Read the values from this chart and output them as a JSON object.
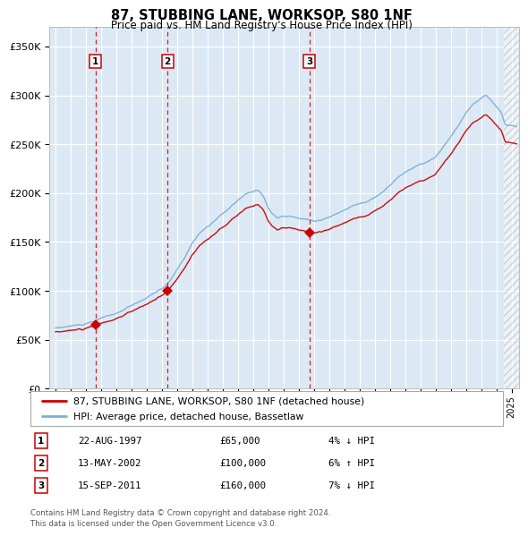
{
  "title": "87, STUBBING LANE, WORKSOP, S80 1NF",
  "subtitle": "Price paid vs. HM Land Registry's House Price Index (HPI)",
  "ylim": [
    0,
    370000
  ],
  "yticks": [
    0,
    50000,
    100000,
    150000,
    200000,
    250000,
    300000,
    350000
  ],
  "ytick_labels": [
    "£0",
    "£50K",
    "£100K",
    "£150K",
    "£200K",
    "£250K",
    "£300K",
    "£350K"
  ],
  "xlim_start": 1994.6,
  "xlim_end": 2025.5,
  "background_color": "#ffffff",
  "plot_bg_color": "#dce9f5",
  "grid_color": "#ffffff",
  "sales": [
    {
      "year": 1997.64,
      "price": 65000,
      "label": "1"
    },
    {
      "year": 2002.37,
      "price": 100000,
      "label": "2"
    },
    {
      "year": 2011.71,
      "price": 160000,
      "label": "3"
    }
  ],
  "sale_color": "#cc0000",
  "hpi_line_color": "#7ab0d4",
  "price_line_color": "#cc0000",
  "legend_entries": [
    "87, STUBBING LANE, WORKSOP, S80 1NF (detached house)",
    "HPI: Average price, detached house, Bassetlaw"
  ],
  "table_rows": [
    {
      "num": "1",
      "date": "22-AUG-1997",
      "price": "£65,000",
      "hpi": "4% ↓ HPI"
    },
    {
      "num": "2",
      "date": "13-MAY-2002",
      "price": "£100,000",
      "hpi": "6% ↑ HPI"
    },
    {
      "num": "3",
      "date": "15-SEP-2011",
      "price": "£160,000",
      "hpi": "7% ↓ HPI"
    }
  ],
  "footer": "Contains HM Land Registry data © Crown copyright and database right 2024.\nThis data is licensed under the Open Government Licence v3.0.",
  "hatch_color": "#aaaaaa",
  "sale_vline_color": "#cc0000"
}
